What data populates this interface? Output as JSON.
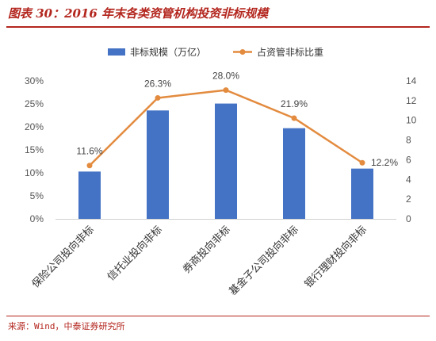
{
  "header": {
    "title": "图表 30：2016 年末各类资管机构投资非标规模"
  },
  "footer": {
    "source": "来源：Wind，中泰证券研究所"
  },
  "colors": {
    "bar": "#4472c4",
    "line": "#e38b3f",
    "accent": "#b3261e"
  },
  "chart_data": {
    "type": "bar",
    "categories": [
      "保险公司投向非标",
      "信托业投向非标",
      "券商投向非标",
      "基金子公司投向非标",
      "银行理财投向非标"
    ],
    "series": [
      {
        "name": "非标规模（万亿）",
        "type": "bar",
        "axis": "right",
        "values": [
          4.8,
          11.0,
          11.7,
          9.2,
          5.1
        ]
      },
      {
        "name": "占资管非标比重",
        "type": "line",
        "axis": "left",
        "values": [
          11.6,
          26.3,
          28.0,
          21.9,
          12.2
        ],
        "labels": [
          "11.6%",
          "26.3%",
          "28.0%",
          "21.9%",
          "12.2%"
        ]
      }
    ],
    "left_axis": {
      "ylim": [
        0,
        30
      ],
      "ticks": [
        "0%",
        "5%",
        "10%",
        "15%",
        "20%",
        "25%",
        "30%"
      ]
    },
    "right_axis": {
      "ylim": [
        0,
        14
      ],
      "ticks": [
        "0",
        "2",
        "4",
        "6",
        "8",
        "10",
        "12",
        "14"
      ]
    },
    "legend_position": "top-center",
    "grid": false
  }
}
